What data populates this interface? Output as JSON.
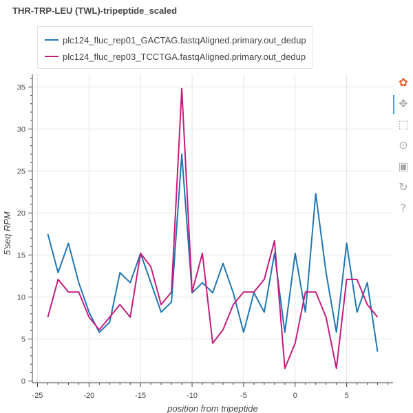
{
  "chart_data": {
    "type": "line",
    "title": "THR-TRP-LEU (TWL)-tripeptide_scaled",
    "xlabel": "position from tripeptide",
    "ylabel": "5'seq RPM",
    "xlim": [
      -25.5,
      9.5
    ],
    "ylim": [
      -0.2,
      36.5
    ],
    "xticks": [
      -25,
      -20,
      -15,
      -10,
      -5,
      0,
      5
    ],
    "yticks": [
      0,
      5,
      10,
      15,
      20,
      25,
      30,
      35
    ],
    "grid": true,
    "legend_position": "top-left",
    "x": [
      -24,
      -23,
      -22,
      -21,
      -20,
      -19,
      -18,
      -17,
      -16,
      -15,
      -14,
      -13,
      -12,
      -11,
      -10,
      -9,
      -8,
      -7,
      -6,
      -5,
      -4,
      -3,
      -2,
      -1,
      0,
      1,
      2,
      3,
      4,
      5,
      6,
      7,
      8
    ],
    "series": [
      {
        "name": "plc124_fluc_rep01_GACTAG.fastqAligned.primary.out_dedup",
        "color": "#1f77b4",
        "values": [
          17.5,
          12.9,
          16.4,
          11.7,
          8.2,
          5.8,
          7.0,
          12.9,
          11.7,
          15.2,
          11.7,
          8.2,
          9.4,
          27.0,
          10.5,
          11.7,
          10.5,
          14.0,
          10.5,
          5.8,
          10.5,
          8.2,
          15.2,
          5.8,
          15.2,
          8.2,
          22.3,
          12.9,
          5.8,
          16.4,
          8.2,
          11.7,
          3.5
        ]
      },
      {
        "name": "plc124_fluc_rep03_TCCTGA.fastqAligned.primary.out_dedup",
        "color": "#c51b7d",
        "values": [
          7.6,
          12.1,
          10.6,
          10.6,
          7.6,
          6.1,
          7.6,
          9.1,
          7.6,
          15.2,
          13.6,
          9.1,
          10.6,
          34.8,
          10.6,
          15.2,
          4.5,
          6.1,
          9.1,
          10.6,
          10.6,
          12.1,
          16.7,
          1.5,
          4.5,
          10.6,
          10.6,
          7.6,
          1.5,
          12.1,
          12.1,
          9.1,
          7.6
        ]
      }
    ]
  },
  "toolbar": {
    "tools": [
      {
        "name": "bokeh-logo-icon",
        "glyph": "✿",
        "color": "#e95b2b"
      },
      {
        "name": "pan-tool-icon",
        "glyph": "✥",
        "color": "#a8a8a8"
      },
      {
        "name": "box-zoom-icon",
        "glyph": "⬚",
        "color": "#a8a8a8"
      },
      {
        "name": "wheel-zoom-icon",
        "glyph": "⊙",
        "color": "#a8a8a8"
      },
      {
        "name": "save-icon",
        "glyph": "▣",
        "color": "#a8a8a8"
      },
      {
        "name": "reset-icon",
        "glyph": "↻",
        "color": "#a8a8a8"
      },
      {
        "name": "help-icon",
        "glyph": "?",
        "color": "#a8a8a8"
      }
    ]
  }
}
